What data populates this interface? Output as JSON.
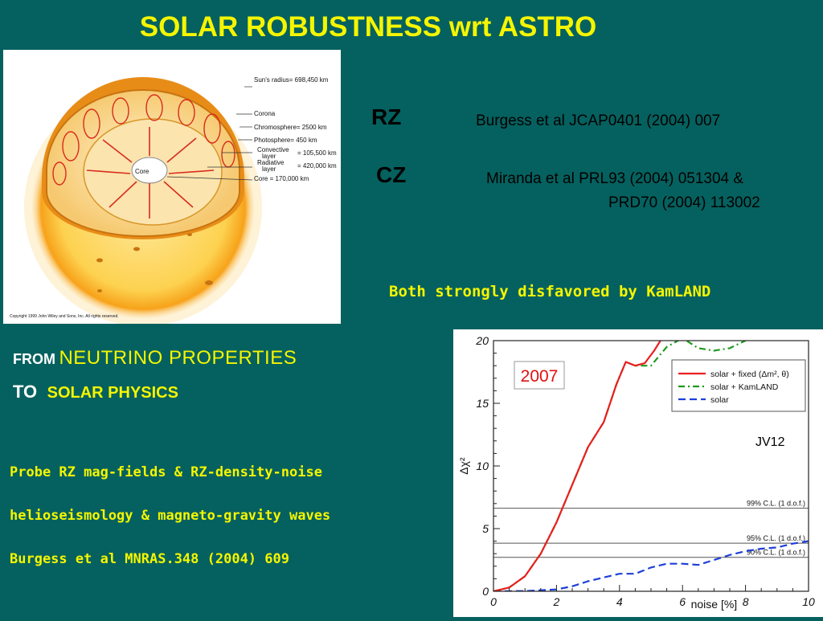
{
  "title": "SOLAR ROBUSTNESS wrt ASTRO",
  "sun_diagram": {
    "radius_label": "Sun's radius= 698,450 km",
    "layers": [
      "Corona",
      "Chromosphere= 2500 km",
      "Photosphere= 450 km",
      "Convective",
      "layer",
      "= 105,500 km",
      "Radiative",
      "layer",
      "= 420,000 km",
      "Core = 170,000 km"
    ],
    "core_label": "Core",
    "copyright": "Copyright 1999 John Wiley and Sons, Inc. All rights reserved."
  },
  "references": [
    {
      "tag": "RZ",
      "lines": [
        "Burgess et al JCAP0401 (2004) 007"
      ]
    },
    {
      "tag": "CZ",
      "lines": [
        "Miranda et al  PRL93 (2004) 051304 &",
        "PRD70 (2004) 113002"
      ]
    }
  ],
  "conclusion": "Both strongly disfavored by KamLAND",
  "heading": {
    "from": "FROM",
    "neutrino": "NEUTRINO PROPERTIES",
    "to": "TO",
    "solar": "SOLAR PHYSICS"
  },
  "bullets": [
    "Probe RZ mag-fields & RZ-density-noise",
    "helioseismology & magneto-gravity waves",
    "Burgess et al MNRAS.348 (2004) 609"
  ],
  "chart_label": "JV12",
  "colors": {
    "background": "#05615f",
    "accent": "#f5f500",
    "red": "#e8201e",
    "green": "#1f9a1f",
    "blue": "#1f3fd8"
  },
  "chart_data": {
    "type": "line",
    "year_tag": "2007",
    "xlabel": "noise [%]",
    "ylabel": "Δχ²",
    "xlim": [
      0,
      10
    ],
    "ylim": [
      0,
      20
    ],
    "xticks": [
      0,
      2,
      4,
      6,
      8,
      10
    ],
    "yticks": [
      0,
      5,
      10,
      15,
      20
    ],
    "legend_position": "top-right",
    "series": [
      {
        "name": "solar + fixed (Δm², θ)",
        "style": "solid",
        "color": "#e8201e",
        "x": [
          0,
          0.5,
          1.0,
          1.5,
          2.0,
          2.5,
          3.0,
          3.5,
          3.9,
          4.2,
          4.5,
          4.8,
          5.1,
          5.5,
          6.0
        ],
        "y": [
          0,
          0.3,
          1.2,
          3.0,
          5.5,
          8.5,
          11.5,
          13.5,
          16.5,
          18.3,
          18.0,
          18.2,
          19.2,
          20.8,
          23
        ]
      },
      {
        "name": "solar + KamLAND",
        "style": "dash-dot",
        "color": "#1f9a1f",
        "x": [
          0,
          0.5,
          1.0,
          1.5,
          2.0,
          2.5,
          3.0,
          3.5,
          3.9,
          4.2,
          4.5,
          5.0,
          5.5,
          6.0,
          6.5,
          7.0,
          7.5,
          8.0
        ],
        "y": [
          0,
          0.3,
          1.2,
          3.0,
          5.5,
          8.5,
          11.5,
          13.5,
          16.5,
          18.3,
          18.0,
          18.0,
          19.5,
          20.2,
          19.4,
          19.2,
          19.4,
          20.0
        ]
      },
      {
        "name": "solar",
        "style": "dashed",
        "color": "#1f3fd8",
        "x": [
          0,
          1.0,
          2.0,
          2.5,
          3.0,
          3.5,
          4.0,
          4.5,
          5.0,
          5.5,
          6.0,
          6.5,
          7.0,
          7.5,
          8.0,
          8.5,
          9.0,
          9.5,
          10.0
        ],
        "y": [
          0,
          0.02,
          0.15,
          0.4,
          0.8,
          1.1,
          1.4,
          1.4,
          1.9,
          2.2,
          2.2,
          2.1,
          2.5,
          2.9,
          3.2,
          3.4,
          3.5,
          3.8,
          4.0
        ]
      }
    ],
    "reference_lines": [
      {
        "label": "99% C.L. (1 d.o.f.)",
        "y": 6.63
      },
      {
        "label": "95% C.L. (1 d.o.f.)",
        "y": 3.84
      },
      {
        "label": "90% C.L. (1 d.o.f.)",
        "y": 2.71
      }
    ]
  }
}
